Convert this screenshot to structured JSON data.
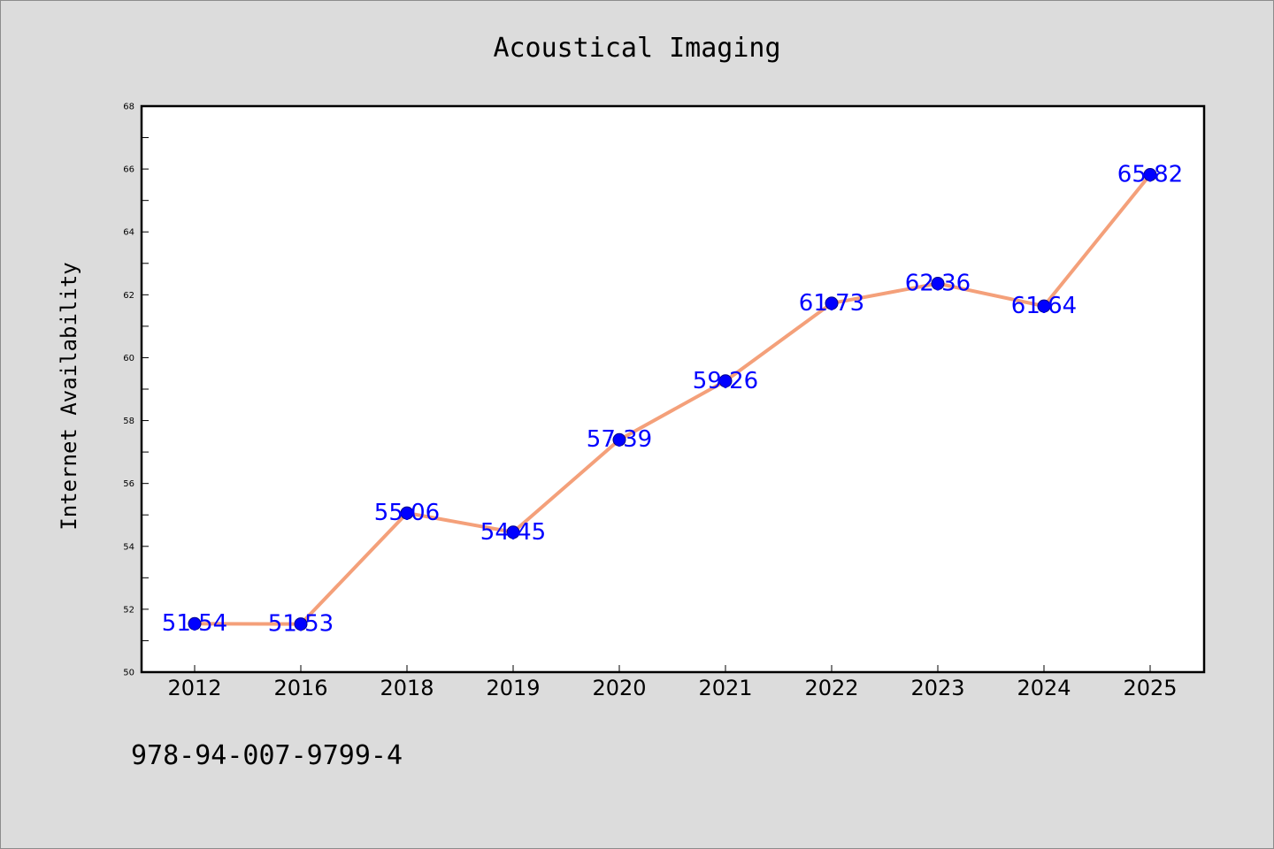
{
  "chart_data": {
    "type": "line",
    "title": "Acoustical Imaging",
    "xlabel": "",
    "ylabel": "Internet Availability",
    "categories": [
      "2012",
      "2016",
      "2018",
      "2019",
      "2020",
      "2021",
      "2022",
      "2023",
      "2024",
      "2025"
    ],
    "series": [
      {
        "values": [
          51.54,
          51.53,
          55.06,
          54.45,
          57.39,
          59.26,
          61.73,
          62.36,
          61.64,
          65.82
        ]
      }
    ],
    "data_labels": [
      "51.54",
      "51.53",
      "55.06",
      "54.45",
      "57.39",
      "59.26",
      "61.73",
      "62.36",
      "61.64",
      "65.82"
    ],
    "ylim": [
      50,
      68
    ],
    "yticks": [
      "50",
      "52",
      "54",
      "56",
      "58",
      "60",
      "62",
      "64",
      "66",
      "68"
    ],
    "grid": false,
    "legend": "none",
    "colors": {
      "line": "#f4a07a",
      "marker": "#0000ff",
      "data_label": "#0000ff",
      "background": "#dcdcdc",
      "plot_background": "#ffffff"
    }
  },
  "footer": {
    "isbn": "978-94-007-9799-4"
  }
}
